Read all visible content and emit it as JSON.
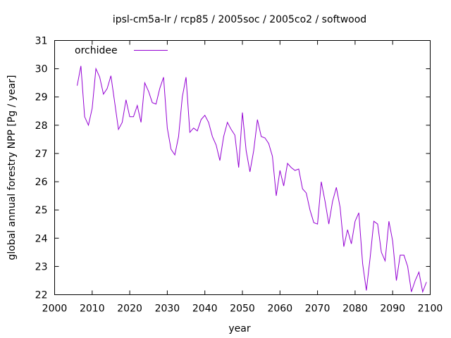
{
  "chart_data": {
    "type": "line",
    "title": "ipsl-cm5a-lr / rcp85 / 2005soc / 2005co2 / softwood",
    "xlabel": "year",
    "ylabel": "global annual forestry NPP [Pg / year]",
    "xlim": [
      2000,
      2100
    ],
    "ylim": [
      22,
      31
    ],
    "xticks": [
      "2000",
      "2010",
      "2020",
      "2030",
      "2040",
      "2050",
      "2060",
      "2070",
      "2080",
      "2090",
      "2100"
    ],
    "yticks": [
      "22",
      "23",
      "24",
      "25",
      "26",
      "27",
      "28",
      "29",
      "30",
      "31"
    ],
    "grid": false,
    "legend_position": "top-left",
    "series": [
      {
        "name": "orchidee",
        "color": "#9400d3",
        "x_start": 2006,
        "values": [
          29.4,
          30.1,
          28.3,
          28.0,
          28.6,
          30.0,
          29.7,
          29.1,
          29.3,
          29.75,
          28.8,
          27.85,
          28.1,
          28.9,
          28.3,
          28.3,
          28.7,
          28.1,
          29.5,
          29.2,
          28.8,
          28.75,
          29.3,
          29.7,
          27.9,
          27.15,
          26.95,
          27.6,
          29.0,
          29.7,
          27.75,
          27.9,
          27.8,
          28.2,
          28.35,
          28.1,
          27.6,
          27.3,
          26.75,
          27.6,
          28.1,
          27.85,
          27.65,
          26.5,
          28.45,
          27.1,
          26.35,
          27.1,
          28.2,
          27.6,
          27.55,
          27.35,
          26.9,
          25.5,
          26.4,
          25.85,
          26.65,
          26.5,
          26.4,
          26.45,
          25.75,
          25.6,
          25.0,
          24.55,
          24.5,
          26.0,
          25.3,
          24.5,
          25.3,
          25.8,
          25.1,
          23.7,
          24.3,
          23.8,
          24.6,
          24.9,
          23.1,
          22.15,
          23.3,
          24.6,
          24.5,
          23.5,
          23.2,
          24.6,
          23.9,
          22.5,
          23.4,
          23.4,
          23.0,
          22.1,
          22.5,
          22.8,
          22.1,
          22.45
        ]
      }
    ]
  }
}
